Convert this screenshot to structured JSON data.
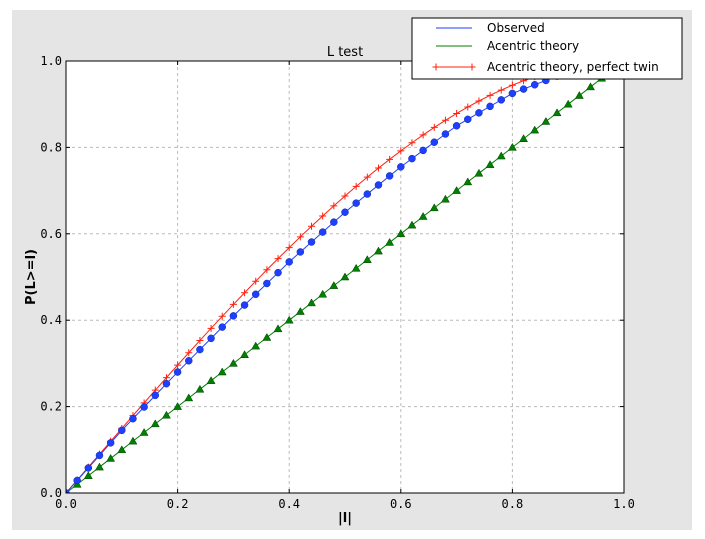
{
  "chart_data": {
    "type": "line",
    "title": "L test",
    "xlabel": "|l|",
    "ylabel": "P(L>=l)",
    "xlim": [
      0,
      1
    ],
    "ylim": [
      0,
      1
    ],
    "xticks": [
      "0.0",
      "0.2",
      "0.4",
      "0.6",
      "0.8",
      "1.0"
    ],
    "yticks": [
      "0.0",
      "0.2",
      "0.4",
      "0.6",
      "0.8",
      "1.0"
    ],
    "grid": true,
    "legend_position": "top-right",
    "x": [
      0,
      0.02,
      0.04,
      0.06,
      0.08,
      0.1,
      0.12,
      0.14,
      0.16,
      0.18,
      0.2,
      0.22,
      0.24,
      0.26,
      0.28,
      0.3,
      0.32,
      0.34,
      0.36,
      0.38,
      0.4,
      0.42,
      0.44,
      0.46,
      0.48,
      0.5,
      0.52,
      0.54,
      0.56,
      0.58,
      0.6,
      0.62,
      0.64,
      0.66,
      0.68,
      0.7,
      0.72,
      0.74,
      0.76,
      0.78,
      0.8,
      0.82,
      0.84,
      0.86,
      0.88,
      0.9,
      0.92,
      0.94,
      0.96,
      0.98,
      1.0
    ],
    "series": [
      {
        "name": "Observed",
        "color": "#1f3fff",
        "marker": "circle",
        "values": [
          0,
          0.029,
          0.058,
          0.087,
          0.116,
          0.145,
          0.172,
          0.199,
          0.226,
          0.253,
          0.28,
          0.306,
          0.332,
          0.358,
          0.384,
          0.41,
          0.435,
          0.46,
          0.485,
          0.51,
          0.535,
          0.558,
          0.581,
          0.604,
          0.627,
          0.65,
          0.671,
          0.692,
          0.713,
          0.734,
          0.755,
          0.774,
          0.793,
          0.812,
          0.831,
          0.85,
          0.865,
          0.88,
          0.895,
          0.91,
          0.925,
          0.935,
          0.945,
          0.955,
          0.965,
          0.975,
          0.98,
          0.985,
          0.99,
          0.995,
          1.0
        ]
      },
      {
        "name": "Acentric theory",
        "color": "#007f00",
        "marker": "triangle",
        "values": [
          0,
          0.02,
          0.04,
          0.06,
          0.08,
          0.1,
          0.12,
          0.14,
          0.16,
          0.18,
          0.2,
          0.22,
          0.24,
          0.26,
          0.28,
          0.3,
          0.32,
          0.34,
          0.36,
          0.38,
          0.4,
          0.42,
          0.44,
          0.46,
          0.48,
          0.5,
          0.52,
          0.54,
          0.56,
          0.58,
          0.6,
          0.62,
          0.64,
          0.66,
          0.68,
          0.7,
          0.72,
          0.74,
          0.76,
          0.78,
          0.8,
          0.82,
          0.84,
          0.86,
          0.88,
          0.9,
          0.92,
          0.94,
          0.96,
          0.98,
          1.0
        ]
      },
      {
        "name": "Acentric theory, perfect twin",
        "color": "#ff2010",
        "marker": "plus",
        "values": [
          0,
          0.03,
          0.06,
          0.0899,
          0.1197,
          0.1495,
          0.1791,
          0.2086,
          0.238,
          0.2671,
          0.296,
          0.3247,
          0.3531,
          0.3812,
          0.409,
          0.4365,
          0.4636,
          0.4903,
          0.5167,
          0.5426,
          0.568,
          0.593,
          0.6174,
          0.6413,
          0.6647,
          0.6875,
          0.7097,
          0.7313,
          0.7522,
          0.7724,
          0.792,
          0.8108,
          0.8289,
          0.8463,
          0.8628,
          0.8785,
          0.8934,
          0.9074,
          0.9205,
          0.9327,
          0.944,
          0.9543,
          0.9636,
          0.972,
          0.9793,
          0.9855,
          0.9907,
          0.9947,
          0.9976,
          0.9994,
          1.0
        ]
      }
    ]
  }
}
